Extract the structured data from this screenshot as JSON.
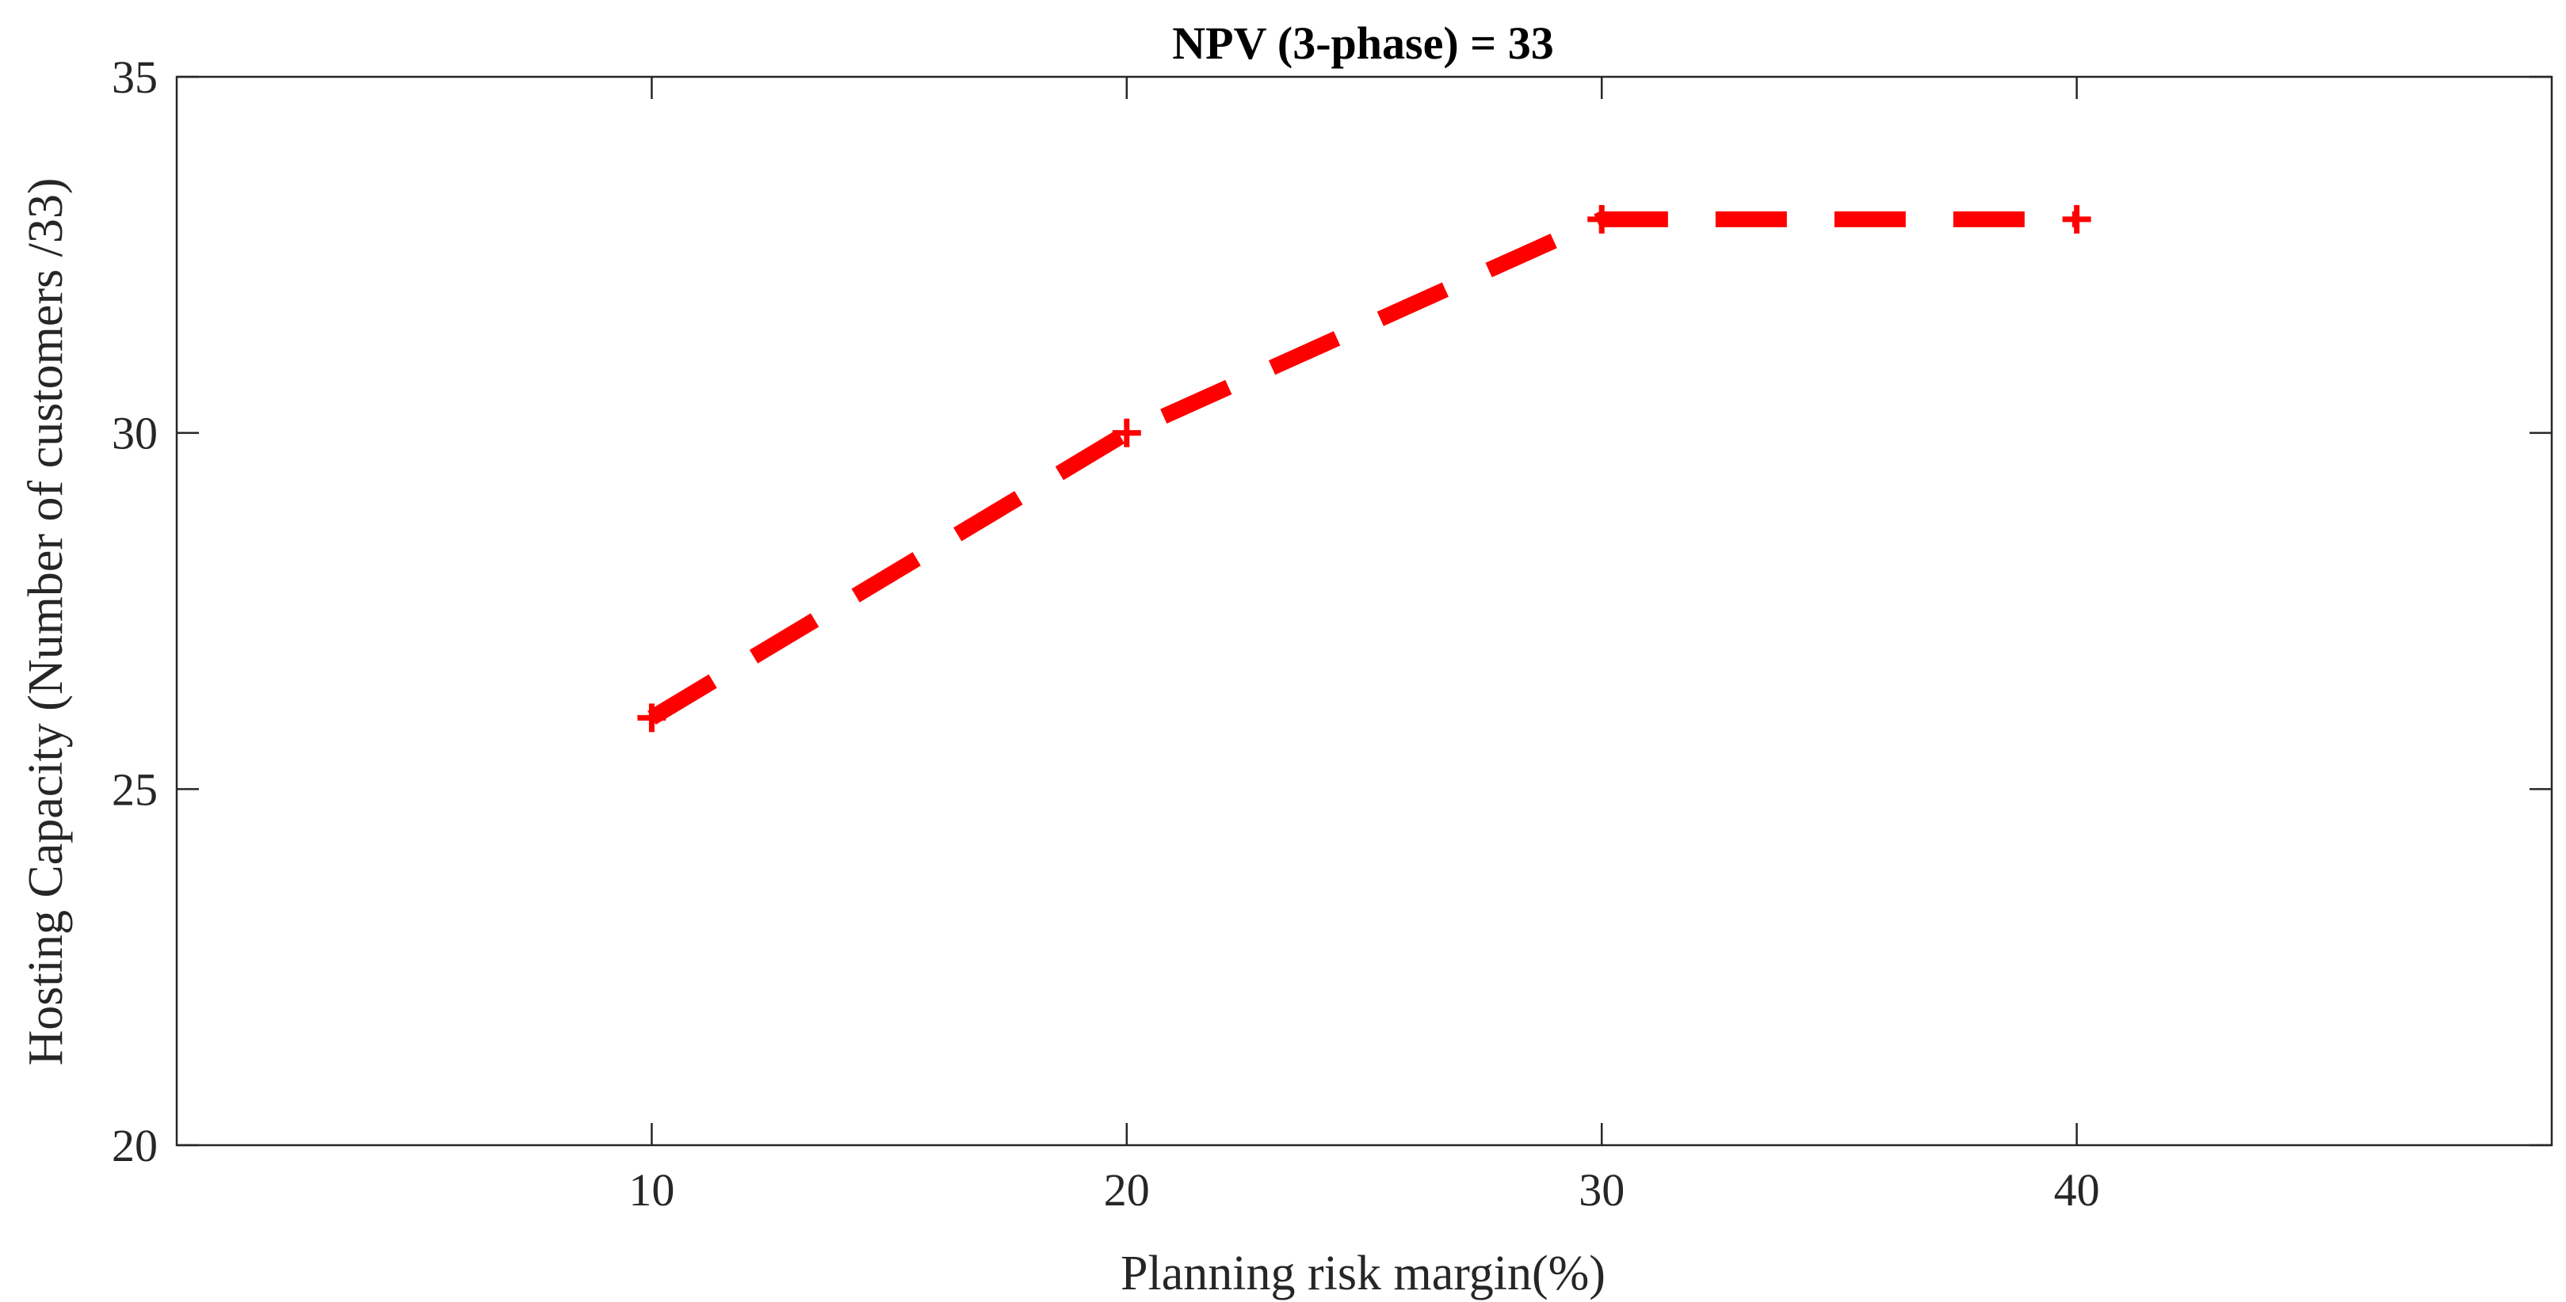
{
  "chart_data": {
    "type": "line",
    "title": "NPV (3-phase) = 33",
    "xlabel": "Planning risk margin(%)",
    "ylabel": "Hosting Capacity (Number of customers /33)",
    "xlim": [
      0,
      50
    ],
    "ylim": [
      20,
      35
    ],
    "xticks": [
      10,
      20,
      30,
      40
    ],
    "yticks": [
      20,
      25,
      30,
      35
    ],
    "grid": false,
    "series": [
      {
        "name": "Hosting Capacity",
        "color": "#ff0000",
        "line_style": "dashed",
        "marker": "plus",
        "x": [
          10,
          20,
          30,
          40
        ],
        "y": [
          26,
          30,
          33,
          33
        ]
      }
    ]
  }
}
